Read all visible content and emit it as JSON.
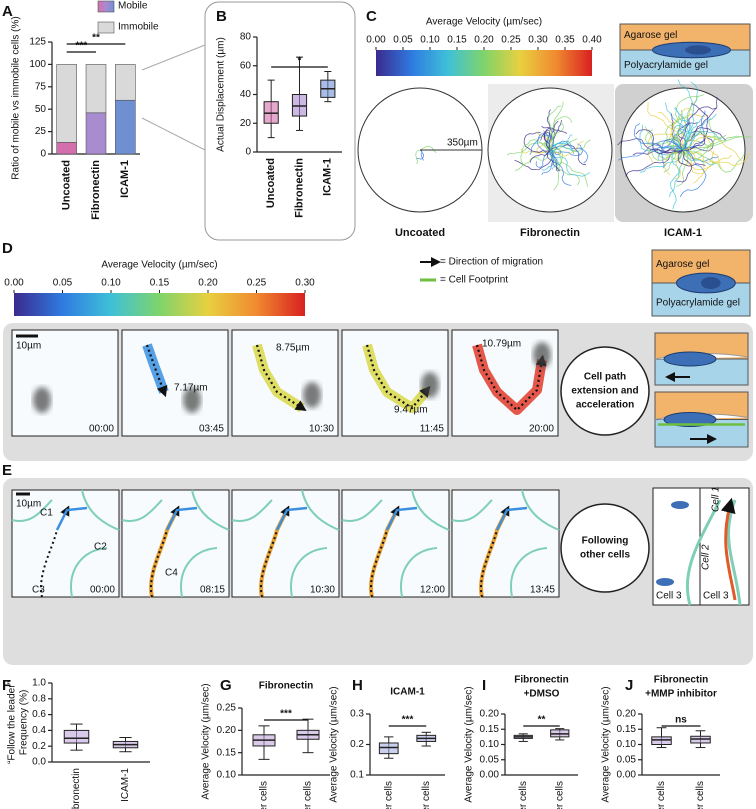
{
  "panel_labels": [
    "A",
    "B",
    "C",
    "D",
    "E",
    "F",
    "G",
    "H",
    "I",
    "J"
  ],
  "chart_data": [
    {
      "type": "stacked_bar",
      "ylabel": "Ratio of mobile vs immobile cells (%)",
      "categories": [
        "Uncoated",
        "Fibronectin",
        "ICAM-1"
      ],
      "series": [
        {
          "name": "Mobile",
          "colors": [
            "#d46fae",
            "#a98bd0",
            "#6f8fd3"
          ],
          "values": [
            13,
            46,
            60
          ]
        },
        {
          "name": "Immobile",
          "color": "#d9d9d9",
          "values": [
            87,
            54,
            40
          ]
        }
      ],
      "ylim": [
        0,
        125
      ],
      "yticks": [
        0,
        25,
        50,
        75,
        100,
        125
      ],
      "significance": [
        "***",
        "**"
      ]
    },
    {
      "type": "box",
      "ylabel": "Actual Displacement (µm)",
      "categories": [
        "Uncoated",
        "Fibronectin",
        "ICAM-1"
      ],
      "colors": [
        "#d46fae",
        "#a98bd0",
        "#6f8fd3"
      ],
      "boxes": [
        {
          "min": 10,
          "q1": 20,
          "median": 27,
          "q3": 35,
          "max": 50
        },
        {
          "min": 15,
          "q1": 25,
          "median": 32,
          "q3": 40,
          "max": 66
        },
        {
          "min": 35,
          "q1": 38,
          "median": 44,
          "q3": 50,
          "max": 56
        }
      ],
      "ylim": [
        0,
        80
      ],
      "yticks": [
        0,
        20,
        40,
        60,
        80
      ],
      "significance": [
        "*"
      ]
    },
    {
      "type": "colorbar",
      "title": "Average Velocity (µm/sec)",
      "xlim": [
        0,
        0.4
      ],
      "xticks": [
        {
          "value": 0,
          "label": "0.00"
        },
        0.05,
        {
          "value": 0.1,
          "label": "0.10"
        },
        0.15,
        {
          "value": 0.2,
          "label": "0.20"
        },
        0.25,
        {
          "value": 0.3,
          "label": "0.30"
        },
        0.35,
        {
          "value": 0.4,
          "label": "0.40"
        }
      ],
      "colors": [
        "#3b2a8f",
        "#2f7be0",
        "#3fc0d8",
        "#7fd46a",
        "#e8d040",
        "#f08a30",
        "#d82020"
      ]
    },
    {
      "type": "colorbar",
      "title": "Average Velocity (µm/sec)",
      "xlim": [
        0,
        0.3
      ],
      "xticks": [
        {
          "value": 0,
          "label": "0.00"
        },
        0.05,
        {
          "value": 0.1,
          "label": "0.10"
        },
        0.15,
        {
          "value": 0.2,
          "label": "0.20"
        },
        0.25,
        {
          "value": 0.3,
          "label": "0.30"
        }
      ],
      "colors": [
        "#3b2a8f",
        "#2f7be0",
        "#3fc0d8",
        "#7fd46a",
        "#e8d040",
        "#f08a30",
        "#d82020"
      ]
    },
    {
      "type": "box",
      "ylabel": [
        "“Follow the leader”",
        "Frequency (%)"
      ],
      "categories": [
        "Fibronectin",
        "ICAM-1"
      ],
      "color": "#c0a6db",
      "boxes": [
        {
          "min": 0.15,
          "q1": 0.24,
          "median": 0.3,
          "q3": 0.4,
          "max": 0.48
        },
        {
          "min": 0.13,
          "q1": 0.18,
          "median": 0.22,
          "q3": 0.26,
          "max": 0.31
        }
      ],
      "ylim": [
        0,
        1
      ],
      "yticks": [
        {
          "value": 0,
          "label": "0.0"
        },
        {
          "value": 0.2,
          "label": "0.2"
        },
        {
          "value": 0.4,
          "label": "0.4"
        },
        {
          "value": 0.6,
          "label": "0.6"
        },
        {
          "value": 0.8,
          "label": "0.8"
        },
        {
          "value": 1,
          "label": "1.0"
        }
      ]
    },
    {
      "type": "box",
      "title": "Fibronectin",
      "ylabel": "Average Velocity (µm/sec)",
      "categories": [
        "Leader cells",
        "Follower cells"
      ],
      "color": "#c0a6db",
      "boxes": [
        {
          "min": 0.135,
          "q1": 0.165,
          "median": 0.178,
          "q3": 0.19,
          "max": 0.21
        },
        {
          "min": 0.15,
          "q1": 0.18,
          "median": 0.19,
          "q3": 0.2,
          "max": 0.225
        }
      ],
      "ylim": [
        0.1,
        0.25
      ],
      "yticks": [
        {
          "value": 0.1,
          "label": "0.10"
        },
        0.15,
        {
          "value": 0.2,
          "label": "0.20"
        },
        0.25
      ],
      "significance": [
        "***"
      ]
    },
    {
      "type": "box",
      "title": "ICAM-1",
      "ylabel": "Average Velocity (µm/sec)",
      "categories": [
        "Leader cells",
        "Follower cells"
      ],
      "color": "#a9b0e0",
      "boxes": [
        {
          "min": 0.155,
          "q1": 0.17,
          "median": 0.19,
          "q3": 0.205,
          "max": 0.225
        },
        {
          "min": 0.195,
          "q1": 0.21,
          "median": 0.22,
          "q3": 0.23,
          "max": 0.24
        }
      ],
      "ylim": [
        0.1,
        0.3
      ],
      "yticks": [
        0.1,
        0.2,
        0.3
      ],
      "significance": [
        "***"
      ]
    },
    {
      "type": "box",
      "title": [
        "Fibronectin",
        "+DMSO"
      ],
      "ylabel": "Average Velocity (µm/sec)",
      "categories": [
        "Leader cells",
        "Follower cells"
      ],
      "color": "#c0a6db",
      "boxes": [
        {
          "min": 0.11,
          "q1": 0.12,
          "median": 0.125,
          "q3": 0.13,
          "max": 0.135
        },
        {
          "min": 0.115,
          "q1": 0.125,
          "median": 0.135,
          "q3": 0.148,
          "max": 0.152
        }
      ],
      "ylim": [
        0,
        0.2
      ],
      "yticks": [
        {
          "value": 0,
          "label": "0.00"
        },
        0.05,
        {
          "value": 0.1,
          "label": "0.10"
        },
        0.15,
        {
          "value": 0.2,
          "label": "0.20"
        }
      ],
      "significance": [
        "**"
      ]
    },
    {
      "type": "box",
      "title": [
        "Fibronectin",
        "+MMP inhibitor"
      ],
      "ylabel": "Average Velocity (µm/sec)",
      "categories": [
        "Leader cells",
        "Follower cells"
      ],
      "color": "#c0a6db",
      "boxes": [
        {
          "min": 0.09,
          "q1": 0.1,
          "median": 0.115,
          "q3": 0.125,
          "max": 0.155
        },
        {
          "min": 0.09,
          "q1": 0.105,
          "median": 0.118,
          "q3": 0.127,
          "max": 0.145
        }
      ],
      "ylim": [
        0,
        0.2
      ],
      "yticks": [
        {
          "value": 0,
          "label": "0.00"
        },
        0.05,
        {
          "value": 0.1,
          "label": "0.10"
        },
        0.15,
        {
          "value": 0.2,
          "label": "0.20"
        }
      ],
      "significance": [
        "ns"
      ]
    }
  ],
  "panel_c": {
    "gel_labels": [
      "Agarose gel",
      "Polyacrylamide gel"
    ],
    "scale": "350µm",
    "conditions": [
      "Uncoated",
      "Fibronectin",
      "ICAM-1"
    ]
  },
  "panel_d": {
    "legend": [
      "= Direction of migration",
      "= Cell Footprint"
    ],
    "gel_labels": [
      "Agarose gel",
      "Polyacrylamide gel"
    ],
    "scale_bar": "10µm",
    "distances": [
      "7.17µm",
      "8.75µm",
      "9.47µm",
      "10.79µm"
    ],
    "times": [
      "00:00",
      "03:45",
      "10:30",
      "11:45",
      "20:00"
    ],
    "caption": [
      "Cell path",
      "extension and",
      "acceleration"
    ]
  },
  "panel_e": {
    "scale_bar": "10µm",
    "cells": [
      "C1",
      "C2",
      "C3",
      "C4"
    ],
    "times": [
      "00:00",
      "08:15",
      "10:30",
      "12:00",
      "13:45"
    ],
    "caption": [
      "Following",
      "other cells"
    ],
    "diagram_labels": [
      "Cell 1",
      "Cell 2",
      "Cell 3",
      "Cell 3"
    ]
  }
}
